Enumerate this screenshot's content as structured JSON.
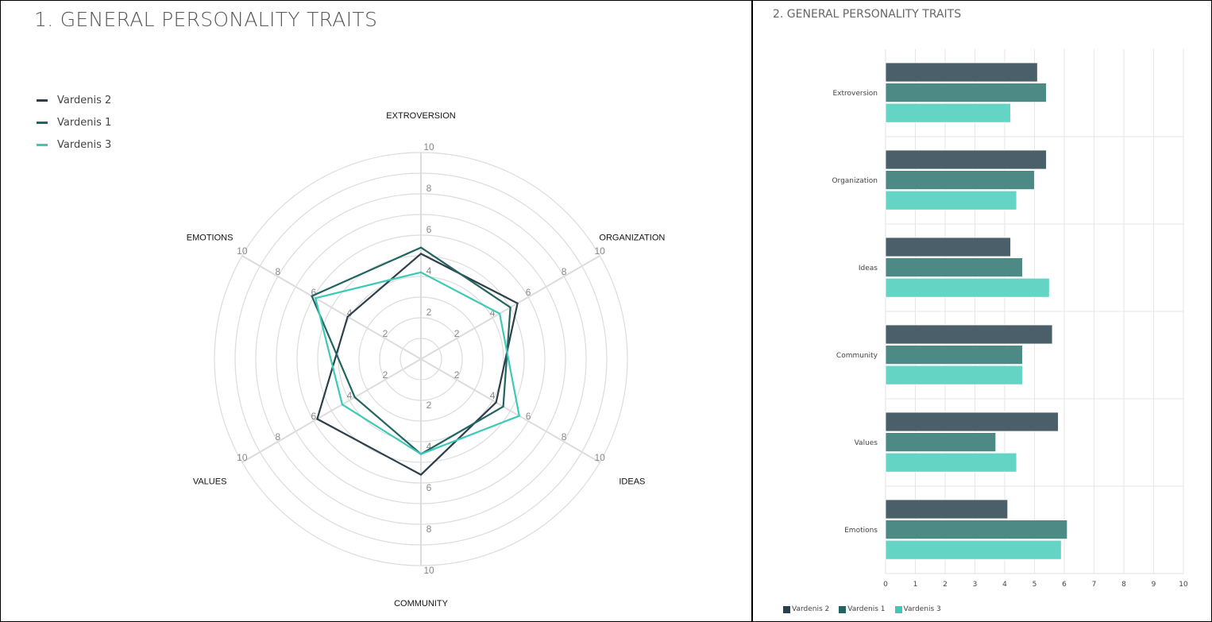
{
  "colors": {
    "Vardenis 2": "#2c3f4a",
    "Vardenis 1": "#22645f",
    "Vardenis 3": "#3cc9b5"
  },
  "bar_colors": {
    "Vardenis 2": "#4a5f69",
    "Vardenis 1": "#4e8a85",
    "Vardenis 3": "#64d5c5"
  },
  "chart_data": [
    {
      "type": "radar",
      "title": "1. GENERAL PERSONALITY TRAITS",
      "categories": [
        "EXTROVERSION",
        "ORGANIZATION",
        "IDEAS",
        "COMMUNITY",
        "VALUES",
        "EMOTIONS"
      ],
      "ticks": [
        "2",
        "4",
        "6",
        "8",
        "10"
      ],
      "range": [
        0,
        10
      ],
      "legend": "top-left",
      "series": [
        {
          "name": "Vardenis 2",
          "values": [
            5.1,
            5.4,
            4.2,
            5.6,
            5.8,
            4.1
          ]
        },
        {
          "name": "Vardenis 1",
          "values": [
            5.4,
            5.0,
            4.6,
            4.6,
            3.7,
            6.1
          ]
        },
        {
          "name": "Vardenis 3",
          "values": [
            4.2,
            4.4,
            5.5,
            4.6,
            4.4,
            5.9
          ]
        }
      ]
    },
    {
      "type": "bar",
      "orientation": "horizontal",
      "title": "2. GENERAL PERSONALITY TRAITS",
      "categories": [
        "Extroversion",
        "Organization",
        "Ideas",
        "Community",
        "Values",
        "Emotions"
      ],
      "xticks": [
        "0",
        "1",
        "2",
        "3",
        "4",
        "5",
        "6",
        "7",
        "8",
        "9",
        "10"
      ],
      "xlim": [
        0,
        10
      ],
      "grid": true,
      "legend": "bottom-left",
      "series": [
        {
          "name": "Vardenis 2",
          "values": [
            5.1,
            5.4,
            4.2,
            5.6,
            5.8,
            4.1
          ]
        },
        {
          "name": "Vardenis 1",
          "values": [
            5.4,
            5.0,
            4.6,
            4.6,
            3.7,
            6.1
          ]
        },
        {
          "name": "Vardenis 3",
          "values": [
            4.2,
            4.4,
            5.5,
            4.6,
            4.4,
            5.9
          ]
        }
      ]
    }
  ]
}
